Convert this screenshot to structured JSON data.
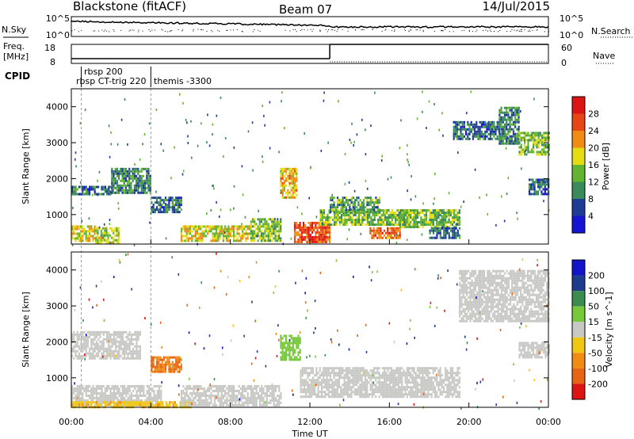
{
  "header": {
    "radar": "Blackstone (fitACF)",
    "beam": "Beam 07",
    "date": "14/Jul/2015"
  },
  "left_labels": {
    "nsky": "N.Sky",
    "freq_line1": "Freq.",
    "freq_line2": "[MHz]",
    "cpid": "CPID"
  },
  "right_labels": {
    "nsearch": "N.Search",
    "nave": "Nave"
  },
  "noise_panel": {
    "left_ticks": [
      "10^5",
      "10^0"
    ],
    "right_ticks": [
      "10^5",
      "10^0"
    ]
  },
  "freq_panel": {
    "left_ticks": [
      "18",
      "8"
    ],
    "right_ticks": [
      "60",
      "0"
    ]
  },
  "cpid_labels": [
    "rbsp 200",
    "rbsp CT-trig 220",
    "themis -3300"
  ],
  "power_colorbar": {
    "label": "Power [dB]",
    "ticks": [
      "4",
      "8",
      "12",
      "16",
      "20",
      "24",
      "28"
    ],
    "colors": [
      "#1414d2",
      "#1e3c96",
      "#3a8a5a",
      "#64b432",
      "#e6dc14",
      "#f08c14",
      "#e64614",
      "#dc1414"
    ]
  },
  "velocity_colorbar": {
    "label": "Velocity [m s^-1]",
    "ticks": [
      "200",
      "100",
      "50",
      "15",
      "-15",
      "-50",
      "-100",
      "-200"
    ],
    "colors": [
      "#1414c8",
      "#1e3c8c",
      "#3c8c50",
      "#78c83c",
      "#c8c8c4",
      "#f0c814",
      "#f08c14",
      "#e66414",
      "#dc1414"
    ]
  },
  "chart_data": {
    "type": "heatmap",
    "x_axis": {
      "label": "Time UT",
      "range": [
        "00:00",
        "24:00"
      ],
      "tick_labels": [
        "00:00",
        "04:00",
        "08:00",
        "12:00",
        "16:00",
        "20:00",
        "00:00"
      ]
    },
    "y_axis": {
      "label": "Slant Range [km]",
      "range": [
        180,
        4500
      ],
      "tick_values": [
        1000,
        2000,
        3000,
        4000
      ],
      "tick_labels": [
        "1000",
        "2000",
        "3000",
        "4000"
      ]
    },
    "frequency_MHz": [
      {
        "from": 0.0,
        "to": 13.0,
        "value": 10.5
      },
      {
        "from": 13.0,
        "to": 24.0,
        "value": 18.0
      }
    ],
    "cpid_changes_hours": [
      0.5,
      4.0
    ],
    "power_regions_dB": [
      {
        "t0": 0.0,
        "t1": 1.2,
        "r0": 300,
        "r1": 700,
        "dB": 18
      },
      {
        "t0": 1.2,
        "t1": 2.4,
        "r0": 250,
        "r1": 650,
        "dB": 16
      },
      {
        "t0": 0.0,
        "t1": 2.0,
        "r0": 1550,
        "r1": 1800,
        "dB": 8
      },
      {
        "t0": 2.0,
        "t1": 4.0,
        "r0": 1600,
        "r1": 2300,
        "dB": 10
      },
      {
        "t0": 4.0,
        "t1": 5.5,
        "r0": 1100,
        "r1": 1500,
        "dB": 8
      },
      {
        "t0": 5.5,
        "t1": 9.0,
        "r0": 250,
        "r1": 700,
        "dB": 18
      },
      {
        "t0": 9.0,
        "t1": 10.5,
        "r0": 300,
        "r1": 900,
        "dB": 14
      },
      {
        "t0": 10.5,
        "t1": 11.3,
        "r0": 1500,
        "r1": 2300,
        "dB": 20
      },
      {
        "t0": 11.2,
        "t1": 13.0,
        "r0": 250,
        "r1": 800,
        "dB": 26
      },
      {
        "t0": 12.5,
        "t1": 17.0,
        "r0": 700,
        "r1": 1150,
        "dB": 14
      },
      {
        "t0": 13.0,
        "t1": 15.5,
        "r0": 1050,
        "r1": 1500,
        "dB": 12
      },
      {
        "t0": 15.0,
        "t1": 16.5,
        "r0": 350,
        "r1": 650,
        "dB": 24
      },
      {
        "t0": 16.5,
        "t1": 19.5,
        "r0": 650,
        "r1": 1150,
        "dB": 14
      },
      {
        "t0": 18.0,
        "t1": 19.5,
        "r0": 350,
        "r1": 650,
        "dB": 8
      },
      {
        "t0": 19.2,
        "t1": 21.5,
        "r0": 3100,
        "r1": 3600,
        "dB": 8
      },
      {
        "t0": 21.5,
        "t1": 22.5,
        "r0": 3000,
        "r1": 4000,
        "dB": 10
      },
      {
        "t0": 22.5,
        "t1": 24.0,
        "r0": 2700,
        "r1": 3300,
        "dB": 14
      },
      {
        "t0": 23.0,
        "t1": 24.0,
        "r0": 1600,
        "r1": 2000,
        "dB": 8
      }
    ],
    "velocity_regions_ms": [
      {
        "t0": 0.0,
        "t1": 4.5,
        "r0": 250,
        "r1": 800,
        "v": 0
      },
      {
        "t0": 0.0,
        "t1": 6.0,
        "r0": 180,
        "r1": 350,
        "v": -40
      },
      {
        "t0": 0.0,
        "t1": 3.5,
        "r0": 1550,
        "r1": 2300,
        "v": 0
      },
      {
        "t0": 4.0,
        "t1": 5.5,
        "r0": 1200,
        "r1": 1600,
        "v": -100
      },
      {
        "t0": 5.5,
        "t1": 10.5,
        "r0": 250,
        "r1": 800,
        "v": 0
      },
      {
        "t0": 10.5,
        "t1": 11.5,
        "r0": 1500,
        "r1": 2200,
        "v": 30
      },
      {
        "t0": 11.5,
        "t1": 19.5,
        "r0": 500,
        "r1": 1300,
        "v": 0
      },
      {
        "t0": 19.5,
        "t1": 24.0,
        "r0": 2600,
        "r1": 4000,
        "v": 0
      },
      {
        "t0": 22.5,
        "t1": 24.0,
        "r0": 1600,
        "r1": 2000,
        "v": 0
      }
    ]
  }
}
